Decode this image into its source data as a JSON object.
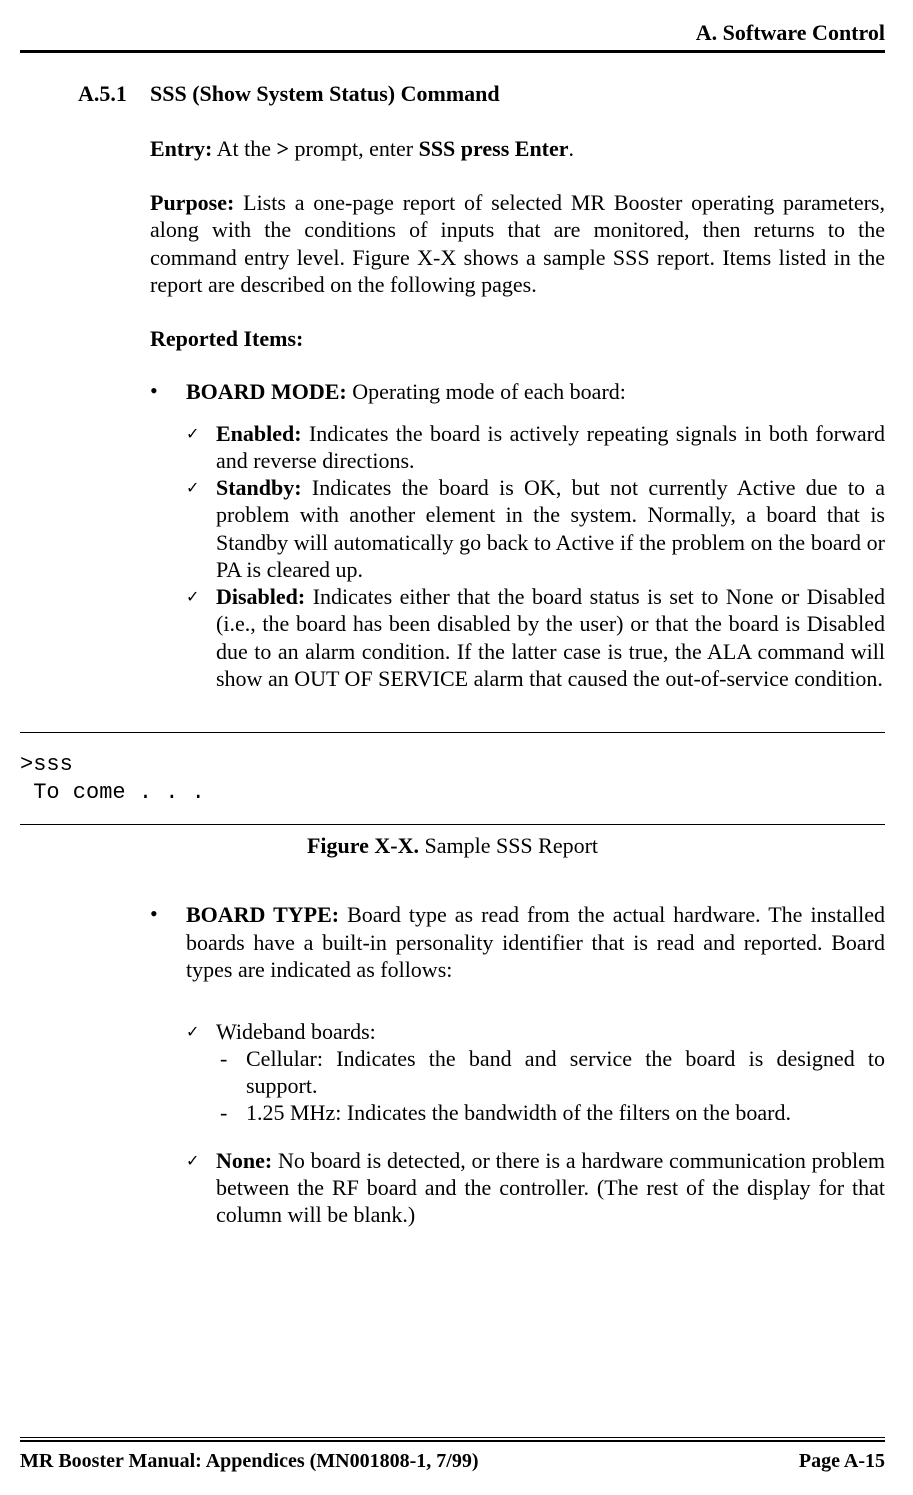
{
  "header": {
    "title": "A. Software Control"
  },
  "section": {
    "number": "A.5.1",
    "title": "SSS (Show System Status) Command"
  },
  "entry": {
    "label": "Entry:",
    "pre": "  At the ",
    "prompt": ">",
    "mid": " prompt, enter ",
    "cmd": "SSS press Enter",
    "post": "."
  },
  "purpose": {
    "label": "Purpose:",
    "text": "   Lists a one-page report of selected MR Booster operating parameters, along with the conditions of inputs that are monitored, then returns to the command entry level.  Figure X-X shows a sample SSS report. Items listed in the report are described on the following pages."
  },
  "reported": {
    "label": "Reported Items:"
  },
  "boardmode": {
    "label": "BOARD MODE:",
    "text": "  Operating mode of each board:"
  },
  "enabled": {
    "label": "Enabled:",
    "text": "  Indicates the board is actively repeating signals in both forward and reverse directions."
  },
  "standby": {
    "label": "Standby:",
    "text": "  Indicates the board is OK, but not currently  Active due to a problem with another element in the system. Normally, a board that is Standby will automatically go back to Active if the problem on the board or PA is cleared up."
  },
  "disabled": {
    "label": "Disabled:",
    "text": "  Indicates either that the board status is set to None or Disabled (i.e., the board has been disabled by the user) or that the board is Disabled due to an alarm condition.  If the latter case is true, the ALA command will show an OUT OF SERVICE alarm that caused the out-of-service condition."
  },
  "code": {
    "line1": ">sss",
    "line2": " To come . . ."
  },
  "figure": {
    "label": "Figure X-X.",
    "text": "  Sample SSS Report"
  },
  "boardtype": {
    "label": "BOARD TYPE:",
    "text": "  Board type as read from the actual hardware.  The installed boards have a built-in personality identifier that is read and reported.  Board types are indicated as follows:"
  },
  "wideband": {
    "label": "Wideband boards:"
  },
  "cellular": {
    "text": "Cellular:  Indicates the band and service the board is designed to support."
  },
  "mhz": {
    "text": "1.25 MHz:  Indicates the bandwidth of the filters on the board."
  },
  "none": {
    "label": "None:",
    "text": " No board is detected, or there is a hardware communication problem between the RF board and the controller.  (The rest of the display for that column will be blank.)"
  },
  "footer": {
    "left": "MR Booster Manual: Appendices (MN001808-1, 7/99)",
    "right": "Page A-15"
  }
}
